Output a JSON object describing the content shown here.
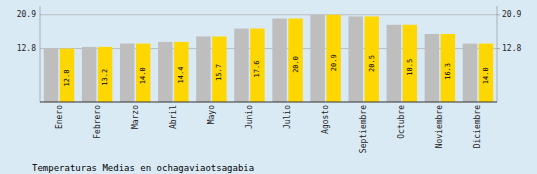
{
  "chart_data": {
    "type": "bar",
    "title": "Temperaturas Medias en ochagaviaotsagabia",
    "categories": [
      "Enero",
      "Febrero",
      "Marzo",
      "Abril",
      "Mayo",
      "Junio",
      "Julio",
      "Agosto",
      "Septiembre",
      "Octubre",
      "Noviembre",
      "Diciembre"
    ],
    "series": [
      {
        "color": "#BEBEBE",
        "values": [
          12.8,
          13.2,
          14.0,
          14.4,
          15.7,
          17.6,
          20.0,
          20.9,
          20.5,
          18.5,
          16.3,
          14.0
        ]
      },
      {
        "color": "#FFD700",
        "values": [
          12.8,
          13.2,
          14.0,
          14.4,
          15.7,
          17.6,
          20.0,
          20.9,
          20.5,
          18.5,
          16.3,
          14.0
        ],
        "data_labels": true,
        "value_labels": [
          "12.8",
          "13.2",
          "14.0",
          "14.4",
          "15.7",
          "17.6",
          "20.0",
          "20.9",
          "20.5",
          "18.5",
          "16.3",
          "14.0"
        ]
      }
    ],
    "ylim": [
      0,
      23.0
    ],
    "yticks": [
      12.8,
      20.9
    ],
    "y2lim": [
      0,
      23.0
    ],
    "y2ticks": [
      12.8,
      20.9
    ],
    "grid": true
  }
}
